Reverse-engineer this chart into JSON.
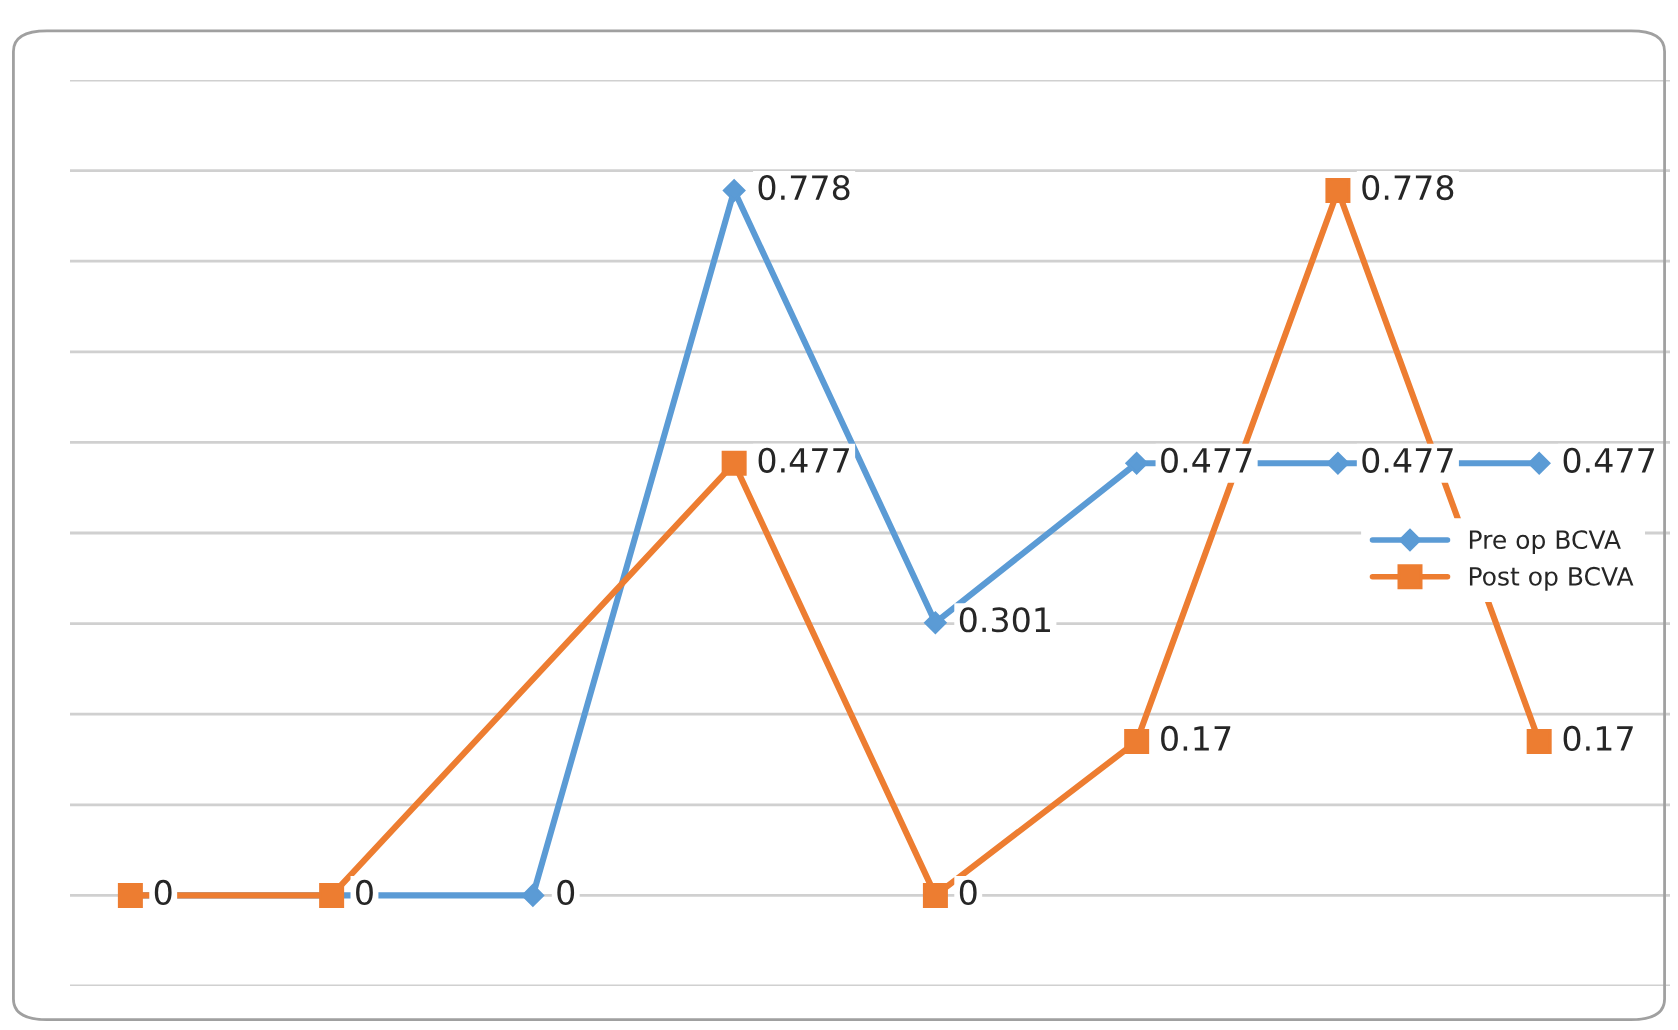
{
  "chart_data": {
    "type": "line",
    "categories": [
      null,
      null,
      null,
      null,
      null,
      null,
      null,
      null
    ],
    "ylim": [
      -0.1,
      0.9
    ],
    "yticks": [
      {
        "value": -0.1,
        "label": null
      },
      {
        "value": 0,
        "label": null
      },
      {
        "value": 0.1,
        "label": null
      },
      {
        "value": 0.2,
        "label": null
      },
      {
        "value": 0.3,
        "label": null
      },
      {
        "value": 0.4,
        "label": null
      },
      {
        "value": 0.5,
        "label": null
      },
      {
        "value": 0.6,
        "label": null
      },
      {
        "value": 0.7,
        "label": null
      },
      {
        "value": 0.8,
        "label": null
      },
      {
        "value": 0.9,
        "label": null
      }
    ],
    "grid": "y",
    "legend": "right",
    "line_style": "solid",
    "series": [
      {
        "name": "Pre op BCVA",
        "color": "#5b9bd5",
        "marker": "diamond",
        "values": [
          0,
          0,
          0,
          0.778,
          0.301,
          0.477,
          0.477,
          0.477
        ],
        "value_labels": [
          null,
          null,
          "0",
          "0.778",
          "0.301",
          "0.477",
          "0.477",
          "0.477"
        ]
      },
      {
        "name": "Post op BCVA",
        "color": "#ed7d31",
        "marker": "square",
        "values": [
          0,
          0,
          null,
          0.477,
          0,
          0.17,
          0.778,
          0.17
        ],
        "value_labels": [
          "0",
          "0",
          null,
          "0.477",
          "0",
          "0.17",
          "0.778",
          "0.17"
        ]
      }
    ]
  }
}
